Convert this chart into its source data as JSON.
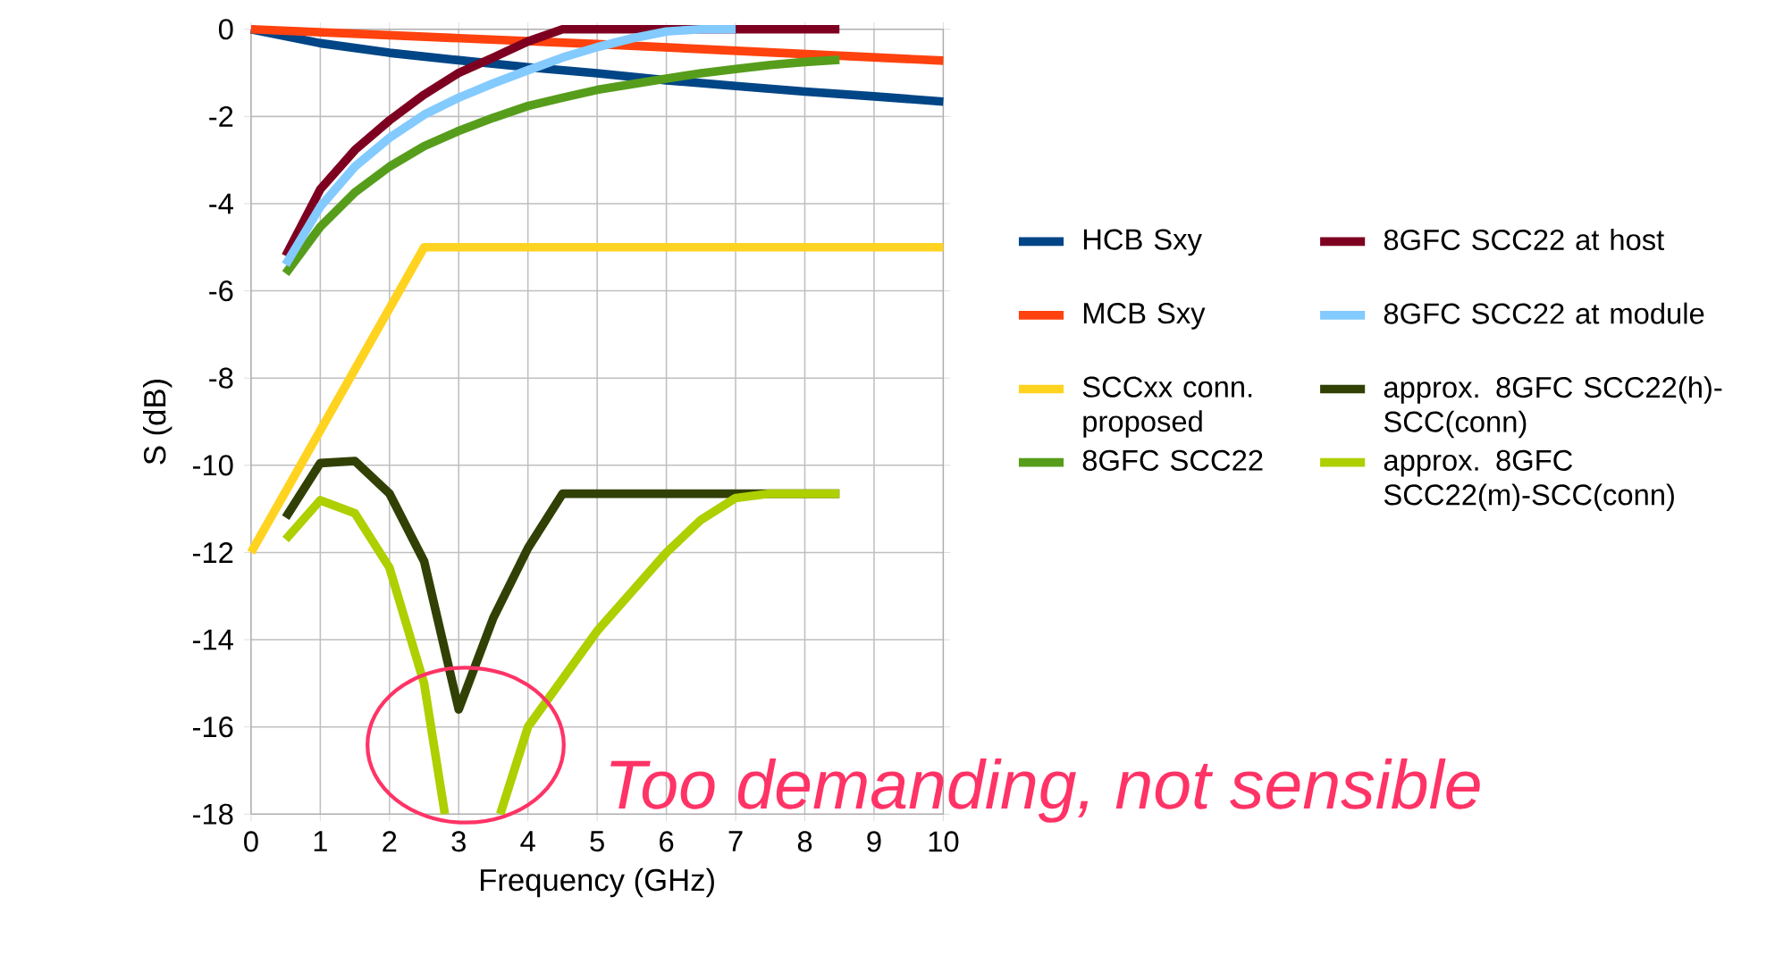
{
  "chart_data": {
    "type": "line",
    "xlabel": "Frequency (GHz)",
    "ylabel": "S (dB)",
    "xlim": [
      0,
      10
    ],
    "ylim": [
      -18,
      0
    ],
    "xticks": [
      0,
      1,
      2,
      3,
      4,
      5,
      6,
      7,
      8,
      9,
      10
    ],
    "yticks": [
      -18,
      -16,
      -14,
      -12,
      -10,
      -8,
      -6,
      -4,
      -2,
      0
    ],
    "grid": true,
    "legend": "right",
    "series": [
      {
        "name": "HCB Sxy",
        "color": "#004586",
        "x": [
          0,
          1,
          2,
          3,
          4,
          5,
          6,
          7,
          8,
          9,
          10
        ],
        "values": [
          0,
          -0.32,
          -0.54,
          -0.71,
          -0.87,
          -1.01,
          -1.17,
          -1.3,
          -1.43,
          -1.54,
          -1.66
        ]
      },
      {
        "name": "MCB Sxy",
        "color": "#ff420e",
        "x": [
          0,
          5,
          10
        ],
        "values": [
          0,
          -0.34,
          -0.72
        ]
      },
      {
        "name": "SCCxx conn. proposed",
        "color": "#ffd320",
        "x": [
          0,
          2.5,
          10
        ],
        "values": [
          -12,
          -5,
          -5
        ]
      },
      {
        "name": "8GFC SCC22",
        "color": "#579d1c",
        "x": [
          0.5,
          1,
          1.5,
          2,
          2.5,
          3,
          3.5,
          4,
          4.5,
          5,
          5.5,
          6,
          6.5,
          7,
          7.5,
          8,
          8.5
        ],
        "values": [
          -5.6,
          -4.53,
          -3.74,
          -3.15,
          -2.68,
          -2.33,
          -2.03,
          -1.76,
          -1.57,
          -1.39,
          -1.26,
          -1.13,
          -1.01,
          -0.91,
          -0.82,
          -0.75,
          -0.7
        ]
      },
      {
        "name": "8GFC SCC22 at host",
        "color": "#7e0021",
        "x": [
          0.5,
          1,
          1.5,
          2,
          2.5,
          3,
          3.5,
          4,
          4.5,
          5,
          6,
          7,
          8,
          8.5
        ],
        "values": [
          -5.2,
          -3.67,
          -2.77,
          -2.09,
          -1.5,
          -1,
          -0.65,
          -0.28,
          0,
          0,
          0,
          0,
          0,
          0
        ]
      },
      {
        "name": "8GFC SCC22 at module",
        "color": "#83caff",
        "x": [
          0.5,
          1,
          1.5,
          2,
          2.5,
          3,
          3.5,
          4,
          4.5,
          5,
          5.5,
          6,
          6.5,
          7
        ],
        "values": [
          -5.4,
          -4.07,
          -3.15,
          -2.49,
          -1.96,
          -1.57,
          -1.24,
          -0.94,
          -0.65,
          -0.41,
          -0.21,
          -0.05,
          0,
          0
        ]
      },
      {
        "name": "approx. 8GFC SCC22(h)-SCC(conn)",
        "color": "#314004",
        "x": [
          0.5,
          1,
          1.5,
          2,
          2.5,
          3,
          3.5,
          4,
          4.5,
          5,
          6,
          7,
          8,
          8.5
        ],
        "values": [
          -11.2,
          -9.95,
          -9.9,
          -10.65,
          -12.2,
          -15.6,
          -13.5,
          -11.9,
          -10.65,
          -10.65,
          -10.65,
          -10.65,
          -10.65,
          -10.65
        ]
      },
      {
        "name": "approx. 8GFC SCC22(m)-SCC(conn)",
        "color": "#aecf00",
        "x": [
          0.5,
          1,
          1.5,
          2,
          2.5,
          2.8,
          3,
          3.6,
          4,
          4.5,
          5,
          5.5,
          6,
          6.5,
          7,
          7.5,
          8,
          8.5
        ],
        "values": [
          -11.7,
          -10.8,
          -11.1,
          -12.35,
          -15,
          -18,
          null,
          -18,
          -16,
          -14.9,
          -13.8,
          -12.9,
          -12,
          -11.25,
          -10.75,
          -10.65,
          -10.65,
          -10.65
        ]
      }
    ],
    "annotations": [
      "Too demanding, not sensible"
    ]
  }
}
